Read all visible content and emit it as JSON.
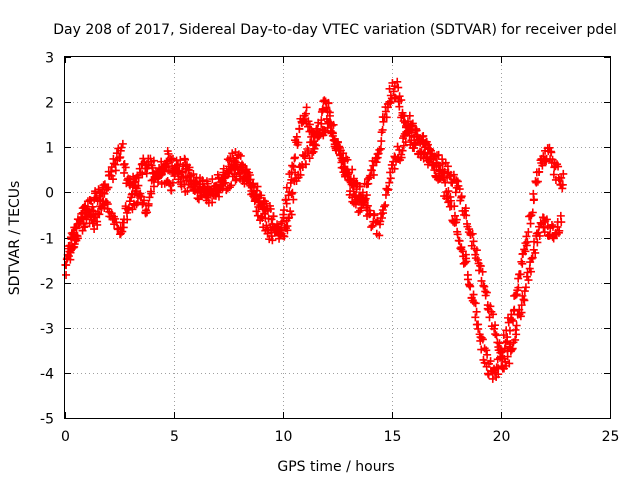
{
  "chart_data": {
    "type": "scatter",
    "title": "Day 208 of 2017, Sidereal Day-to-day VTEC variation (SDTVAR) for receiver pdel",
    "xlabel": "GPS time / hours",
    "ylabel": "SDTVAR / TECUs",
    "xlim": [
      0,
      25
    ],
    "ylim": [
      -5,
      3
    ],
    "xticks": [
      0,
      5,
      10,
      15,
      20,
      25
    ],
    "xtick_labels": [
      "0",
      "5",
      "10",
      "15",
      "20",
      "25"
    ],
    "yticks": [
      -5,
      -4,
      -3,
      -2,
      -1,
      0,
      1,
      2,
      3
    ],
    "ytick_labels": [
      "-5",
      "-4",
      "-3",
      "-2",
      "-1",
      "0",
      "1",
      "2",
      "3"
    ],
    "grid": true,
    "marker": "plus",
    "series": [
      {
        "name": "track-a",
        "color": "#ff0000",
        "x": [
          0.0,
          0.1,
          0.25,
          0.4,
          0.55,
          0.7,
          0.9,
          1.1,
          1.3,
          1.5,
          1.7,
          1.9,
          2.1,
          2.3,
          2.5,
          2.6,
          2.75,
          2.9,
          3.1,
          3.3,
          3.5,
          3.7,
          3.9,
          4.1,
          4.3,
          4.5,
          4.7,
          4.9,
          5.1,
          5.3,
          5.5,
          5.7,
          5.9,
          6.1,
          6.3,
          6.5,
          6.7,
          6.9,
          7.1,
          7.3,
          7.5,
          7.7,
          7.9,
          8.1,
          8.3,
          8.5,
          8.7,
          8.9,
          9.1,
          9.3,
          9.5,
          9.7,
          9.9,
          10.1,
          10.3,
          10.5,
          10.7,
          10.9,
          11.1,
          11.3,
          11.5,
          11.7,
          11.9,
          12.1,
          12.3,
          12.5,
          12.7,
          12.9,
          13.1,
          13.3,
          13.5,
          13.7,
          13.9,
          14.1,
          14.3,
          14.5,
          14.7,
          14.9,
          15.1,
          15.3,
          15.5,
          15.7,
          15.9,
          16.1,
          16.3,
          16.5,
          16.7,
          16.9,
          17.1,
          17.3,
          17.5,
          17.7,
          17.9,
          18.1,
          18.3,
          18.5,
          18.7,
          18.9,
          19.1,
          19.3,
          19.5,
          19.7,
          19.9,
          20.05,
          20.2,
          20.4,
          20.6,
          20.8,
          21.0,
          21.2,
          21.4,
          21.6,
          21.8,
          22.0,
          22.2,
          22.4,
          22.6,
          22.8,
          22.9
        ],
        "y": [
          -1.8,
          -1.5,
          -1.2,
          -1.0,
          -0.8,
          -0.6,
          -0.5,
          -0.3,
          -0.2,
          -0.1,
          0.0,
          0.2,
          0.4,
          0.6,
          0.9,
          1.05,
          0.5,
          0.1,
          0.2,
          0.3,
          0.5,
          0.6,
          0.7,
          0.5,
          0.4,
          0.6,
          0.7,
          0.5,
          0.6,
          0.4,
          0.2,
          0.3,
          0.1,
          0.0,
          0.1,
          0.0,
          0.2,
          0.1,
          0.3,
          0.4,
          0.6,
          0.8,
          0.7,
          0.6,
          0.4,
          0.2,
          -0.1,
          -0.4,
          -0.6,
          -0.8,
          -0.9,
          -1.0,
          -0.8,
          -0.3,
          0.2,
          0.8,
          1.3,
          1.8,
          1.7,
          1.4,
          1.2,
          1.4,
          1.9,
          1.8,
          1.3,
          1.0,
          0.7,
          0.4,
          0.1,
          -0.2,
          -0.3,
          -0.1,
          0.2,
          0.5,
          0.8,
          1.2,
          1.7,
          2.1,
          2.3,
          2.2,
          1.7,
          1.3,
          1.2,
          1.1,
          1.0,
          0.9,
          0.8,
          0.6,
          0.4,
          0.2,
          0.0,
          -0.3,
          -0.6,
          -1.0,
          -1.4,
          -1.8,
          -2.3,
          -2.8,
          -3.3,
          -3.7,
          -3.9,
          -4.0,
          -3.8,
          -3.5,
          -3.2,
          -2.9,
          -2.5,
          -2.0,
          -1.5,
          -1.0,
          -0.4,
          0.2,
          0.6,
          0.9,
          0.8,
          0.6,
          0.4,
          0.3,
          0.5
        ],
        "jitter": 0.22
      },
      {
        "name": "track-b",
        "color": "#ff0000",
        "x": [
          0.1,
          0.3,
          0.5,
          0.8,
          1.0,
          1.3,
          1.6,
          1.9,
          2.2,
          2.5,
          2.8,
          3.1,
          3.4,
          3.7,
          4.0,
          4.3,
          4.6,
          4.9,
          5.2,
          5.5,
          5.8,
          6.1,
          6.4,
          6.7,
          7.0,
          7.3,
          7.6,
          7.9,
          8.2,
          8.5,
          8.8,
          9.1,
          9.4,
          9.7,
          10.0,
          10.3,
          10.6,
          11.9,
          12.1,
          12.3,
          12.6,
          12.9,
          13.2,
          13.5,
          13.8,
          14.1,
          14.4,
          14.6,
          15.2,
          15.4,
          15.6,
          15.8,
          16.0,
          16.3,
          16.6,
          16.9,
          17.2,
          17.5,
          17.8,
          18.1,
          18.4,
          18.7,
          19.0,
          19.3,
          19.6,
          19.9,
          20.1,
          20.4,
          20.7,
          21.0,
          21.3,
          21.6,
          21.9,
          22.2,
          22.5,
          22.8
        ],
        "y": [
          -1.6,
          -1.2,
          -0.9,
          -0.7,
          -0.5,
          -0.8,
          -0.4,
          -0.3,
          -0.6,
          -0.9,
          -0.5,
          -0.2,
          0.0,
          -0.4,
          0.1,
          0.3,
          0.4,
          0.2,
          0.5,
          0.6,
          0.3,
          0.2,
          0.0,
          -0.1,
          0.0,
          0.2,
          0.3,
          0.5,
          0.4,
          0.2,
          0.0,
          -0.3,
          -0.5,
          -0.8,
          -0.9,
          -0.6,
          0.4,
          1.5,
          1.6,
          1.3,
          0.9,
          0.6,
          0.3,
          0.0,
          -0.4,
          -0.6,
          -0.8,
          -0.3,
          0.8,
          0.9,
          1.2,
          1.5,
          1.3,
          1.1,
          1.0,
          0.8,
          0.7,
          0.5,
          0.3,
          0.0,
          -0.5,
          -1.1,
          -1.6,
          -2.2,
          -2.8,
          -3.4,
          -3.9,
          -3.6,
          -3.0,
          -2.4,
          -1.8,
          -1.1,
          -0.6,
          -0.9,
          -0.8,
          -0.6
        ],
        "jitter": 0.2
      }
    ]
  }
}
